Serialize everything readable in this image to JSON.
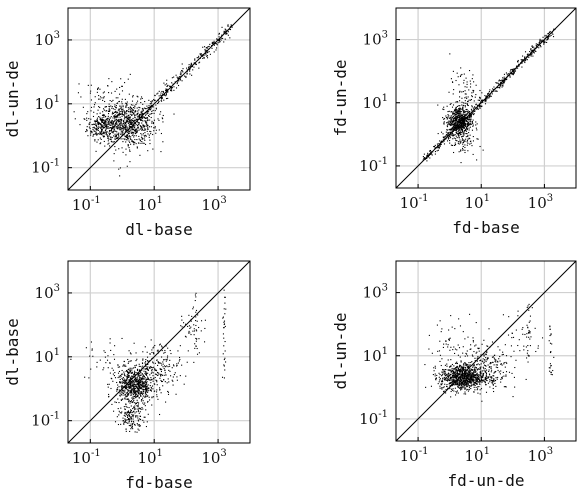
{
  "chart_data": [
    {
      "type": "scatter",
      "xlabel": "dl-base",
      "ylabel": "dl-un-de",
      "xscale": "log",
      "yscale": "log",
      "xlim": [
        0.02,
        10000
      ],
      "ylim": [
        0.02,
        10000
      ],
      "grid": true,
      "diagonal": true,
      "x_ticks": [
        {
          "base": "10",
          "exp": "-1"
        },
        {
          "base": "10",
          "exp": "1"
        },
        {
          "base": "10",
          "exp": "3"
        }
      ],
      "y_ticks": [
        {
          "base": "10",
          "exp": "-1"
        },
        {
          "base": "10",
          "exp": "1"
        },
        {
          "base": "10",
          "exp": "3"
        }
      ],
      "clusters": [
        {
          "cx": -0.6,
          "cy": 0.3,
          "sx": 0.25,
          "sy": 0.2,
          "n": 250
        },
        {
          "cx": 0.2,
          "cy": 0.4,
          "sx": 0.45,
          "sy": 0.35,
          "n": 650
        },
        {
          "cx": -0.5,
          "cy": 1.2,
          "sx": 0.45,
          "sy": 0.35,
          "n": 70
        },
        {
          "cx": 0.1,
          "cy": 0.0,
          "sx": 0.4,
          "sy": 0.4,
          "n": 80
        }
      ],
      "diagonal_band": {
        "from": 0.5,
        "to": 3.4,
        "spread": 0.08,
        "n": 320
      }
    },
    {
      "type": "scatter",
      "xlabel": "fd-base",
      "ylabel": "fd-un-de",
      "xscale": "log",
      "yscale": "log",
      "xlim": [
        0.02,
        10000
      ],
      "ylim": [
        0.02,
        10000
      ],
      "grid": true,
      "diagonal": true,
      "x_ticks": [
        {
          "base": "10",
          "exp": "-1"
        },
        {
          "base": "10",
          "exp": "1"
        },
        {
          "base": "10",
          "exp": "3"
        }
      ],
      "y_ticks": [
        {
          "base": "10",
          "exp": "-1"
        },
        {
          "base": "10",
          "exp": "1"
        },
        {
          "base": "10",
          "exp": "3"
        }
      ],
      "clusters": [
        {
          "cx": 0.3,
          "cy": 0.4,
          "sx": 0.2,
          "sy": 0.25,
          "n": 600
        },
        {
          "cx": 0.5,
          "cy": 1.3,
          "sx": 0.25,
          "sy": 0.35,
          "n": 90
        },
        {
          "cx": 0.4,
          "cy": -0.3,
          "sx": 0.2,
          "sy": 0.2,
          "n": 60
        }
      ],
      "diagonal_band": {
        "from": -0.8,
        "to": 3.3,
        "spread": 0.05,
        "n": 500
      }
    },
    {
      "type": "scatter",
      "xlabel": "fd-base",
      "ylabel": "dl-base",
      "xscale": "log",
      "yscale": "log",
      "xlim": [
        0.02,
        10000
      ],
      "ylim": [
        0.02,
        10000
      ],
      "grid": true,
      "diagonal": true,
      "x_ticks": [
        {
          "base": "10",
          "exp": "-1"
        },
        {
          "base": "10",
          "exp": "1"
        },
        {
          "base": "10",
          "exp": "3"
        }
      ],
      "y_ticks": [
        {
          "base": "10",
          "exp": "-1"
        },
        {
          "base": "10",
          "exp": "1"
        },
        {
          "base": "10",
          "exp": "3"
        }
      ],
      "clusters": [
        {
          "cx": 0.4,
          "cy": 0.1,
          "sx": 0.3,
          "sy": 0.3,
          "n": 700
        },
        {
          "cx": 0.3,
          "cy": -0.9,
          "sx": 0.2,
          "sy": 0.2,
          "n": 150
        },
        {
          "cx": 1.2,
          "cy": 0.7,
          "sx": 0.35,
          "sy": 0.35,
          "n": 180
        },
        {
          "cx": 2.2,
          "cy": 2.0,
          "sx": 0.2,
          "sy": 0.4,
          "n": 40
        },
        {
          "cx": -0.4,
          "cy": 0.8,
          "sx": 0.5,
          "sy": 0.4,
          "n": 50
        }
      ],
      "columns": [
        {
          "x": 3.2,
          "from": 0.3,
          "to": 3.4,
          "n": 30
        },
        {
          "x": 2.3,
          "from": 1.0,
          "to": 3.0,
          "n": 20
        }
      ]
    },
    {
      "type": "scatter",
      "xlabel": "fd-un-de",
      "ylabel": "dl-un-de",
      "xscale": "log",
      "yscale": "log",
      "xlim": [
        0.02,
        10000
      ],
      "ylim": [
        0.02,
        10000
      ],
      "grid": true,
      "diagonal": true,
      "x_ticks": [
        {
          "base": "10",
          "exp": "-1"
        },
        {
          "base": "10",
          "exp": "1"
        },
        {
          "base": "10",
          "exp": "3"
        }
      ],
      "y_ticks": [
        {
          "base": "10",
          "exp": "-1"
        },
        {
          "base": "10",
          "exp": "1"
        },
        {
          "base": "10",
          "exp": "3"
        }
      ],
      "clusters": [
        {
          "cx": 0.4,
          "cy": 0.3,
          "sx": 0.35,
          "sy": 0.2,
          "n": 800
        },
        {
          "cx": 1.1,
          "cy": 0.6,
          "sx": 0.4,
          "sy": 0.35,
          "n": 250
        },
        {
          "cx": 0.3,
          "cy": 1.3,
          "sx": 0.5,
          "sy": 0.45,
          "n": 80
        },
        {
          "cx": 2.3,
          "cy": 1.6,
          "sx": 0.3,
          "sy": 0.5,
          "n": 40
        }
      ],
      "columns": [
        {
          "x": 3.2,
          "from": 0.4,
          "to": 2.0,
          "n": 25
        },
        {
          "x": 2.5,
          "from": 0.8,
          "to": 2.8,
          "n": 20
        }
      ]
    }
  ]
}
